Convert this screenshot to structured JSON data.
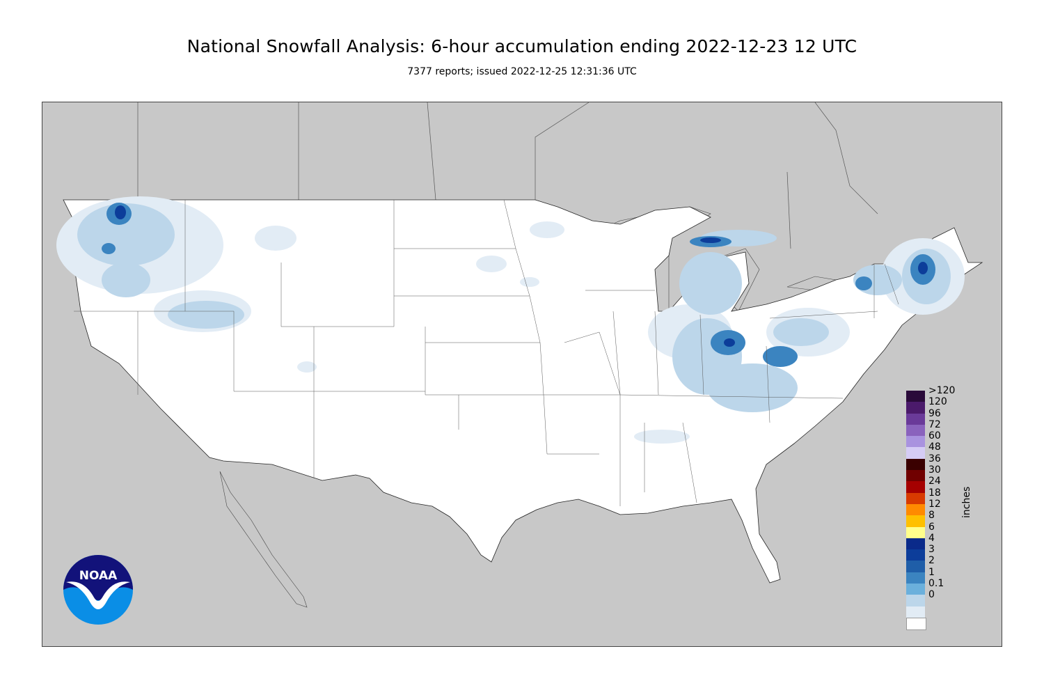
{
  "title": "National Snowfall Analysis: 6-hour accumulation ending 2022-12-23 12 UTC",
  "subtitle": "7377 reports; issued 2022-12-25 12:31:36 UTC",
  "logo": {
    "text": "NOAA"
  },
  "legend": {
    "unit": "inches",
    "entries": [
      {
        "label": ">120",
        "color": "#2a0a3a"
      },
      {
        "label": "120",
        "color": "#4b1a6b"
      },
      {
        "label": "96",
        "color": "#6a3a99"
      },
      {
        "label": "72",
        "color": "#8a63bd"
      },
      {
        "label": "60",
        "color": "#a993df"
      },
      {
        "label": "48",
        "color": "#d5ccf5"
      },
      {
        "label": "36",
        "color": "#3a0000"
      },
      {
        "label": "30",
        "color": "#700000"
      },
      {
        "label": "24",
        "color": "#a50000"
      },
      {
        "label": "18",
        "color": "#d83a00"
      },
      {
        "label": "12",
        "color": "#ff8a00"
      },
      {
        "label": "8",
        "color": "#ffc000"
      },
      {
        "label": "6",
        "color": "#ffff8c"
      },
      {
        "label": "4",
        "color": "#0a2a8a"
      },
      {
        "label": "3",
        "color": "#0c3d9a"
      },
      {
        "label": "2",
        "color": "#1f5ea8"
      },
      {
        "label": "1",
        "color": "#3b84c0"
      },
      {
        "label": "0.1",
        "color": "#6bb0dc"
      },
      {
        "label": "0",
        "color": "#bcd6ea"
      },
      {
        "label": "",
        "color": "#e2ecf5"
      },
      {
        "label": "",
        "color": "#ffffff"
      }
    ]
  },
  "colors": {
    "background": "#c8c8c8",
    "land": "#ffffff",
    "light_snow": "#e2ecf5",
    "mod_snow": "#bcd6ea",
    "heavy_snow": "#3b84c0",
    "very_heavy_snow": "#0c3d9a",
    "noaa_dark": "#12127a",
    "noaa_light": "#0a8ee6"
  }
}
